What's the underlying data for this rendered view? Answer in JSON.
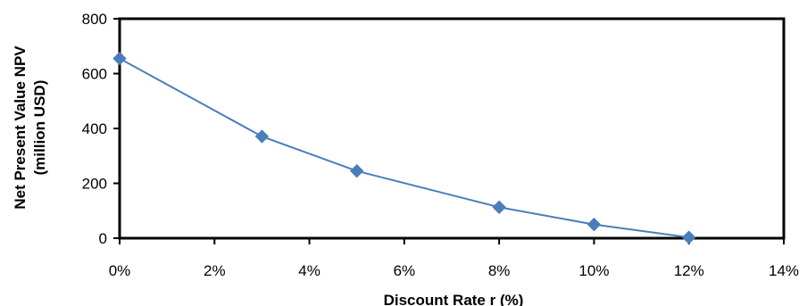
{
  "chart_data": {
    "type": "line",
    "title": "",
    "xlabel": "Discount Rate r (%)",
    "ylabel_lines": [
      "Net Present Value NPV",
      "(million USD)"
    ],
    "xlim": [
      0,
      14
    ],
    "ylim": [
      0,
      800
    ],
    "x_ticks": [
      0,
      2,
      4,
      6,
      8,
      10,
      12,
      14
    ],
    "x_tick_labels": [
      "0%",
      "2%",
      "4%",
      "6%",
      "8%",
      "10%",
      "12%",
      "14%"
    ],
    "y_ticks": [
      0,
      200,
      400,
      600,
      800
    ],
    "y_tick_labels": [
      "0",
      "200",
      "400",
      "600",
      "800"
    ],
    "grid": false,
    "legend": "none",
    "series": [
      {
        "color": "#4a7ebb",
        "marker": "diamond",
        "points": [
          {
            "x": 0,
            "y": 655
          },
          {
            "x": 3,
            "y": 371
          },
          {
            "x": 5,
            "y": 245
          },
          {
            "x": 8,
            "y": 113
          },
          {
            "x": 10,
            "y": 50
          },
          {
            "x": 12,
            "y": 3
          }
        ]
      }
    ]
  }
}
